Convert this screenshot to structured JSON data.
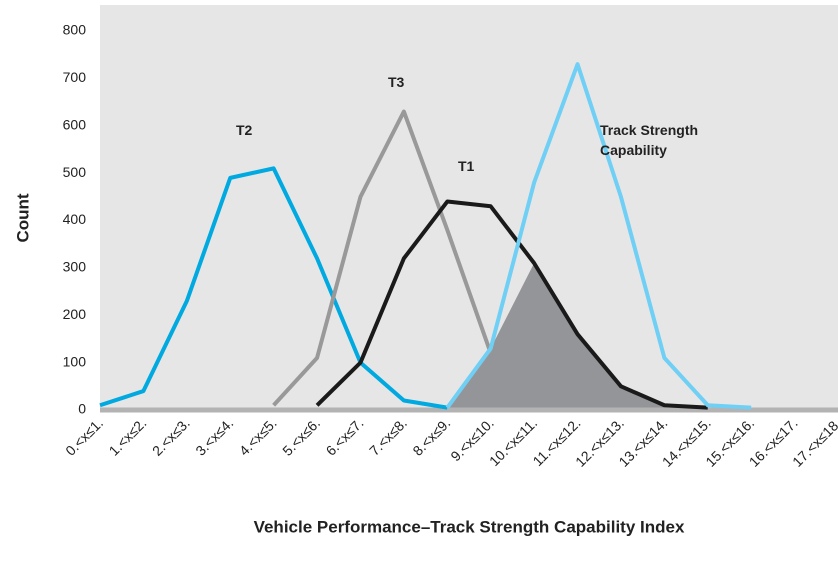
{
  "chart_data": {
    "type": "line",
    "x_label": "Vehicle Performance–Track Strength Capability Index",
    "y_label": "Count",
    "categories": [
      "0.<x≤1.",
      "1.<x≤2.",
      "2.<x≤3.",
      "3.<x≤4.",
      "4.<x≤5.",
      "5.<x≤6.",
      "6.<x≤7.",
      "7.<x≤8.",
      "8.<x≤9.",
      "9.<x≤10.",
      "10.<x≤11.",
      "11.<x≤12.",
      "12.<x≤13.",
      "13.<x≤14.",
      "14.<x≤15.",
      "15.<x≤16.",
      "16.<x≤17.",
      "17.<x≤18."
    ],
    "series": [
      {
        "name": "T2",
        "color": "#00a9e0",
        "values": [
          10,
          40,
          230,
          490,
          510,
          320,
          100,
          20,
          5,
          null,
          null,
          null,
          null,
          null,
          null,
          null,
          null,
          null
        ]
      },
      {
        "name": "T3",
        "color": "#999999",
        "values": [
          null,
          null,
          null,
          null,
          10,
          110,
          450,
          630,
          380,
          120,
          null,
          null,
          null,
          null,
          null,
          null,
          null,
          null
        ]
      },
      {
        "name": "T1",
        "color": "#1a1a1a",
        "values": [
          null,
          null,
          null,
          null,
          null,
          10,
          100,
          320,
          440,
          430,
          310,
          160,
          50,
          10,
          5,
          null,
          null,
          null
        ]
      },
      {
        "name": "Track Strength Capability",
        "color": "#6fcff5",
        "values": [
          null,
          null,
          null,
          null,
          null,
          null,
          null,
          null,
          5,
          130,
          480,
          730,
          450,
          110,
          10,
          5,
          null,
          null
        ]
      }
    ],
    "ylim": [
      0,
      800
    ],
    "yticks": [
      0,
      100,
      200,
      300,
      400,
      500,
      600,
      700,
      800
    ],
    "grid": false
  }
}
